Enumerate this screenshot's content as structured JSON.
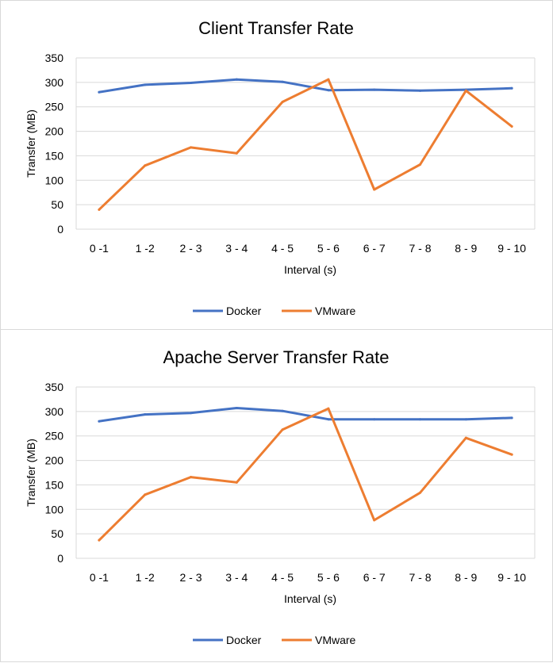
{
  "chart_data": [
    {
      "type": "line",
      "title": "Client Transfer Rate",
      "xlabel": "Interval (s)",
      "ylabel": "Transfer (MB)",
      "ylim": [
        0,
        350
      ],
      "yticks": [
        0,
        50,
        100,
        150,
        200,
        250,
        300,
        350
      ],
      "grid": true,
      "legend": "bottom",
      "categories": [
        "0 -1",
        "1 -2",
        "2 - 3",
        "3 - 4",
        "4 - 5",
        "5 - 6",
        "6 - 7",
        "7 - 8",
        "8 - 9",
        "9 - 10"
      ],
      "series": [
        {
          "name": "Docker",
          "color": "#4472c4",
          "values": [
            280,
            295,
            299,
            306,
            301,
            284,
            285,
            283,
            285,
            288
          ]
        },
        {
          "name": "VMware",
          "color": "#ed7d31",
          "values": [
            40,
            130,
            167,
            155,
            260,
            306,
            81,
            132,
            283,
            210
          ]
        }
      ]
    },
    {
      "type": "line",
      "title": "Apache Server Transfer Rate",
      "xlabel": "Interval (s)",
      "ylabel": "Transfer (MB)",
      "ylim": [
        0,
        350
      ],
      "yticks": [
        0,
        50,
        100,
        150,
        200,
        250,
        300,
        350
      ],
      "grid": true,
      "legend": "bottom",
      "categories": [
        "0 -1",
        "1 -2",
        "2 - 3",
        "3 - 4",
        "4 - 5",
        "5 - 6",
        "6 - 7",
        "7 - 8",
        "8 - 9",
        "9 - 10"
      ],
      "series": [
        {
          "name": "Docker",
          "color": "#4472c4",
          "values": [
            280,
            294,
            297,
            307,
            301,
            284,
            284,
            284,
            284,
            287
          ]
        },
        {
          "name": "VMware",
          "color": "#ed7d31",
          "values": [
            37,
            130,
            166,
            155,
            263,
            306,
            78,
            134,
            246,
            212
          ]
        }
      ]
    }
  ]
}
